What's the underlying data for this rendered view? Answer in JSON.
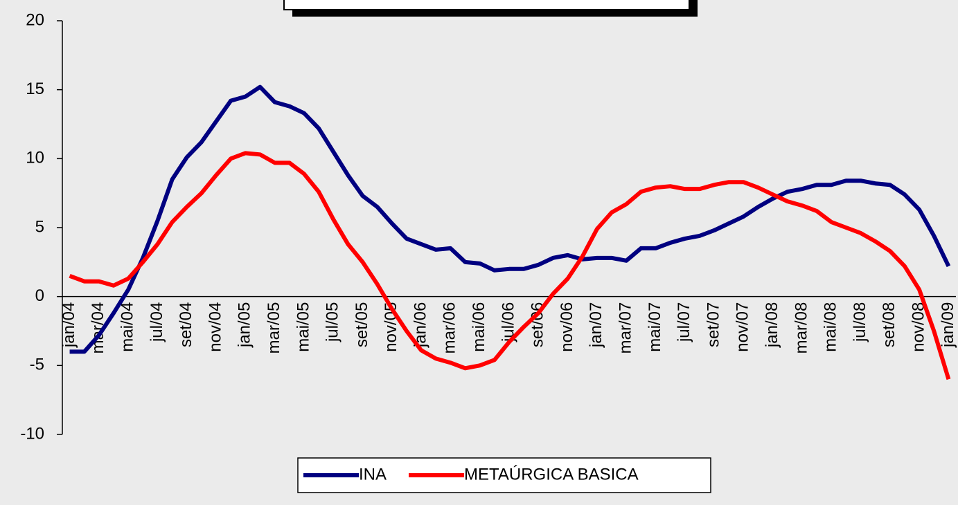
{
  "chart_data": {
    "type": "line",
    "categories": [
      "jan/04",
      null,
      "mar/04",
      null,
      "mai/04",
      null,
      "jul/04",
      null,
      "set/04",
      null,
      "nov/04",
      null,
      "jan/05",
      null,
      "mar/05",
      null,
      "mai/05",
      null,
      "jul/05",
      null,
      "set/05",
      null,
      "nov/05",
      null,
      "jan/06",
      null,
      "mar/06",
      null,
      "mai/06",
      null,
      "jul/06",
      null,
      "set/06",
      null,
      "nov/06",
      null,
      "jan/07",
      null,
      "mar/07",
      null,
      "mai/07",
      null,
      "jul/07",
      null,
      "set/07",
      null,
      "nov/07",
      null,
      "jan/08",
      null,
      "mar/08",
      null,
      "mai/08",
      null,
      "jul/08",
      null,
      "set/08",
      null,
      "nov/08",
      null,
      "jan/09"
    ],
    "series": [
      {
        "name": "INA",
        "color": "#000080",
        "values": [
          -4,
          -4,
          -2.8,
          -1.2,
          0.5,
          2.8,
          5.5,
          8.5,
          10.1,
          11.2,
          12.7,
          14.2,
          14.5,
          15.2,
          14.1,
          13.8,
          13.3,
          12.2,
          10.5,
          8.8,
          7.3,
          6.5,
          5.3,
          4.2,
          3.8,
          3.4,
          3.5,
          2.5,
          2.4,
          1.9,
          2.0,
          2.0,
          2.3,
          2.8,
          3.0,
          2.7,
          2.8,
          2.8,
          2.6,
          3.5,
          3.5,
          3.9,
          4.2,
          4.4,
          4.8,
          5.3,
          5.8,
          6.5,
          7.1,
          7.6,
          7.8,
          8.1,
          8.1,
          8.4,
          8.4,
          8.2,
          8.1,
          7.4,
          6.3,
          4.4,
          2.2
        ]
      },
      {
        "name": "METAÚRGICA BASICA",
        "color": "#ff0000",
        "values": [
          1.5,
          1.1,
          1.1,
          0.8,
          1.3,
          2.5,
          3.8,
          5.4,
          6.5,
          7.5,
          8.8,
          10.0,
          10.4,
          10.3,
          9.7,
          9.7,
          8.9,
          7.6,
          5.6,
          3.8,
          2.5,
          0.9,
          -0.9,
          -2.5,
          -3.9,
          -4.5,
          -4.8,
          -5.2,
          -5.0,
          -4.6,
          -3.3,
          -2.2,
          -1.2,
          0.2,
          1.3,
          2.9,
          4.9,
          6.1,
          6.7,
          7.6,
          7.9,
          8.0,
          7.8,
          7.8,
          8.1,
          8.3,
          8.3,
          7.9,
          7.4,
          6.9,
          6.6,
          6.2,
          5.4,
          5.0,
          4.6,
          4.0,
          3.3,
          2.2,
          0.5,
          -2.5,
          -6.0
        ]
      }
    ],
    "ylim": [
      -10,
      20
    ],
    "yticks": [
      -10,
      -5,
      0,
      5,
      10,
      15,
      20
    ]
  }
}
